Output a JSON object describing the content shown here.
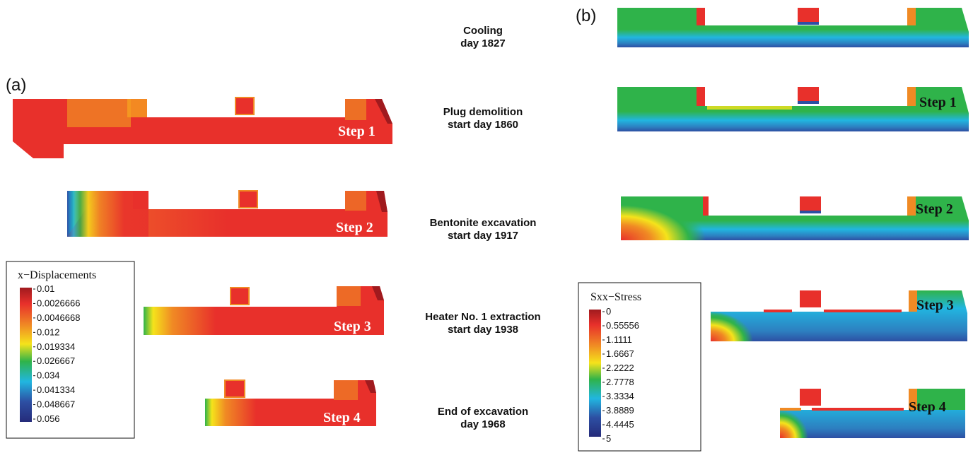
{
  "panel_a_label": "(a)",
  "panel_b_label": "(b)",
  "stages": [
    {
      "line1": "Cooling",
      "line2": "day 1827"
    },
    {
      "line1": "Plug demolition",
      "line2": "start day 1860"
    },
    {
      "line1": "Bentonite excavation",
      "line2": "start day 1917"
    },
    {
      "line1": "Heater No. 1 extraction",
      "line2": "start day 1938"
    },
    {
      "line1": "End of excavation",
      "line2": "day 1968"
    }
  ],
  "steps": [
    "Step 1",
    "Step 2",
    "Step 3",
    "Step 4"
  ],
  "legend_a": {
    "title": "x−Displacements",
    "values": [
      "0.01",
      "0.0026666",
      "0.0046668",
      "0.012",
      "0.019334",
      "0.026667",
      "0.034",
      "0.041334",
      "0.048667",
      "0.056"
    ]
  },
  "legend_b": {
    "title": "Sxx−Stress",
    "values": [
      "0",
      "0.55556",
      "1.1111",
      "1.6667",
      "2.2222",
      "2.7778",
      "3.3334",
      "3.8889",
      "4.4445",
      "5"
    ]
  },
  "colors": {
    "red": "#e8302b",
    "dark_red": "#a01a1e",
    "orange": "#f08a24",
    "yellow": "#f5e31b",
    "green": "#2fb34a",
    "cyan": "#21b6e0",
    "blue": "#2d4fa3",
    "navy": "#252b7a"
  }
}
